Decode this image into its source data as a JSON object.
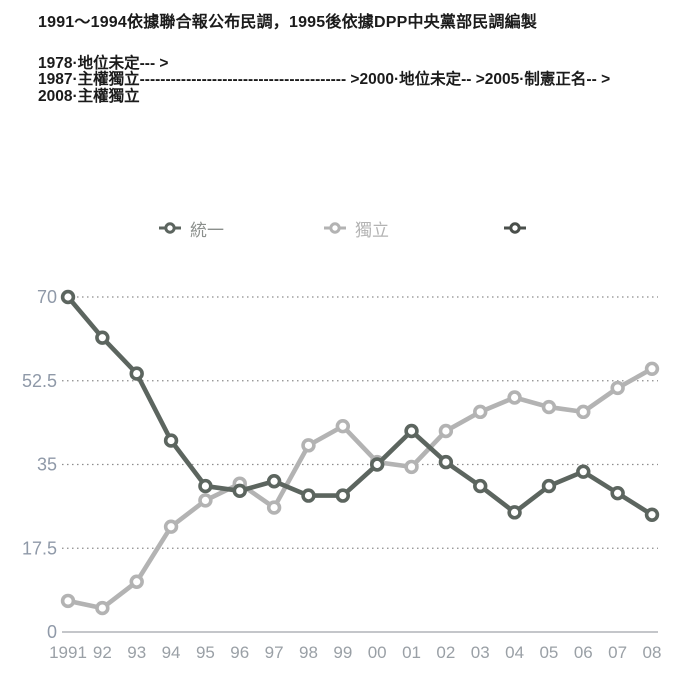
{
  "header": {
    "title": "1991～1994依據聯合報公布民調，1995後依據DPP中央黨部民調編製",
    "timeline_lines": [
      "1978·地位未定--- >",
      "1987·主權獨立---------------------------------------- >2000·地位未定-- >2005·制憲正名-- >",
      "2008·主權獨立"
    ]
  },
  "legend": [
    {
      "label": "統一",
      "marker_color": "#5c655f",
      "label_color": "#8b8f8c"
    },
    {
      "label": "獨立",
      "marker_color": "#b3b3b3",
      "label_color": "#b3b3b3"
    },
    {
      "label": "",
      "marker_color": "#4a4f4b",
      "label_color": "#8b8f8c"
    }
  ],
  "chart_data": {
    "type": "line",
    "title": "",
    "x": [
      "1991",
      "92",
      "93",
      "94",
      "95",
      "96",
      "97",
      "98",
      "99",
      "00",
      "01",
      "02",
      "03",
      "04",
      "05",
      "06",
      "07",
      "08"
    ],
    "series": [
      {
        "name": "統一",
        "color": "#5c655f",
        "values": [
          70,
          61.5,
          54,
          40,
          30.5,
          29.5,
          31.5,
          28.5,
          28.5,
          35,
          42,
          35.5,
          30.5,
          25,
          30.5,
          33.5,
          29,
          24.5
        ]
      },
      {
        "name": "獨立",
        "color": "#b3b3b3",
        "values": [
          6.5,
          5,
          10.5,
          22,
          27.5,
          31,
          26,
          39,
          43,
          35.5,
          34.5,
          42,
          46,
          49,
          47,
          46,
          51,
          55
        ]
      },
      {
        "name": "",
        "color": "#4a4f4b",
        "values": []
      }
    ],
    "ylim": [
      0,
      70
    ],
    "yticks": [
      {
        "label": "70",
        "value": 70
      },
      {
        "label": "52.5",
        "value": 52.5
      },
      {
        "label": "35",
        "value": 35
      },
      {
        "label": "17.5",
        "value": 17.5
      },
      {
        "label": "0",
        "value": 0
      }
    ],
    "grid": "horizontal-dotted",
    "legend_position": "top"
  },
  "colors": {
    "grid": "#8c8c8c",
    "axis_line": "#b0b4b8",
    "y_tick_label": "#8f99a8",
    "x_tick_label": "#9aa0a6",
    "title_text": "#1b1b1b"
  }
}
